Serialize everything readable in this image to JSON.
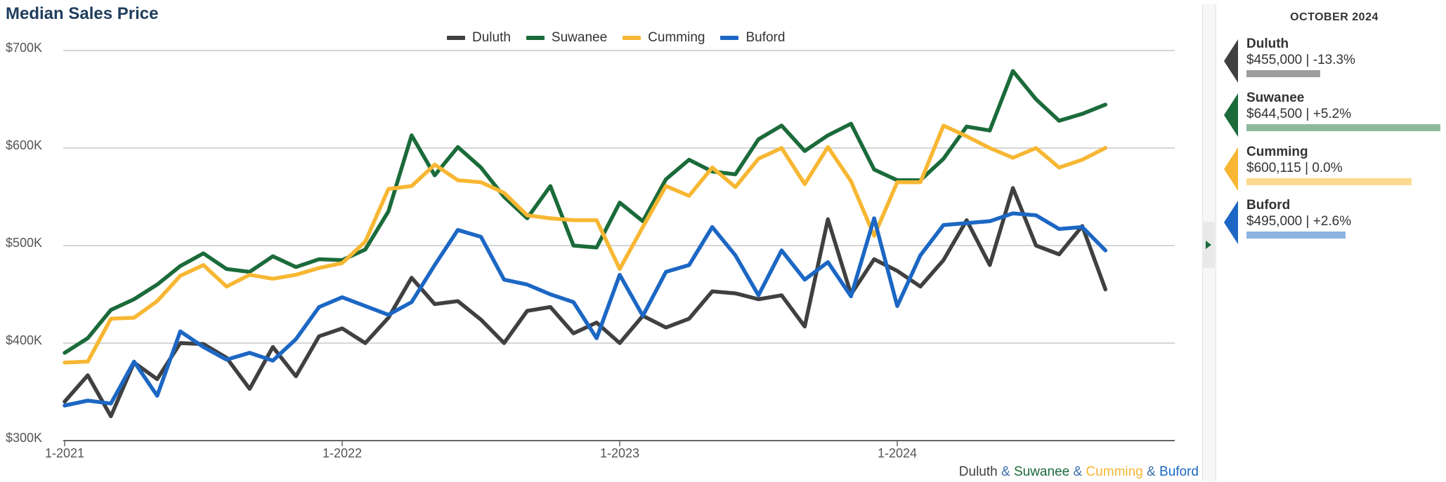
{
  "title": "Median Sales Price",
  "panel": {
    "heading": "OCTOBER 2024",
    "items": [
      {
        "name": "Duluth",
        "value_text": "$455,000 | -13.3%",
        "color": "#404040",
        "bar_color": "#9e9e9e",
        "bar_fraction": 0.38
      },
      {
        "name": "Suwanee",
        "value_text": "$644,500 | +5.2%",
        "color": "#1b6b3a",
        "bar_color": "#8dba9c",
        "bar_fraction": 1.0
      },
      {
        "name": "Cumming",
        "value_text": "$600,115 | 0.0%",
        "color": "#f7b733",
        "bar_color": "#fbd98f",
        "bar_fraction": 0.85
      },
      {
        "name": "Buford",
        "value_text": "$495,000 | +2.6%",
        "color": "#1c67c4",
        "bar_color": "#8cb3e1",
        "bar_fraction": 0.51
      }
    ]
  },
  "footer": {
    "duluth": "Duluth",
    "amp": "&",
    "suwanee": "Suwanee",
    "cumming": "Cumming",
    "buford": "Buford"
  },
  "chart_data": {
    "type": "line",
    "title": "Median Sales Price",
    "xlabel": "",
    "ylabel": "",
    "x_start": "1-2021",
    "x_ticks": [
      "1-2021",
      "1-2022",
      "1-2023",
      "1-2024"
    ],
    "y_ticks": [
      "$300K",
      "$400K",
      "$500K",
      "$600K",
      "$700K"
    ],
    "ylim": [
      300000,
      700000
    ],
    "grid": true,
    "legend": "top-center",
    "series": [
      {
        "name": "Duluth",
        "color": "#404040",
        "values": [
          340000,
          367000,
          325000,
          380000,
          363000,
          400000,
          399000,
          385000,
          353000,
          396000,
          366000,
          407000,
          415000,
          400000,
          426000,
          467000,
          440000,
          443000,
          424000,
          400000,
          433000,
          437000,
          410000,
          421000,
          400000,
          428000,
          416000,
          425000,
          453000,
          451000,
          445000,
          449000,
          417000,
          527000,
          450000,
          486000,
          474000,
          458000,
          485000,
          526000,
          480000,
          559000,
          500000,
          491000,
          520000,
          455000
        ]
      },
      {
        "name": "Suwanee",
        "color": "#1b6b3a",
        "values": [
          390000,
          405000,
          434000,
          445000,
          460000,
          479000,
          492000,
          476000,
          473000,
          489000,
          478000,
          486000,
          485000,
          496000,
          535000,
          613000,
          572000,
          601000,
          580000,
          550000,
          528000,
          561000,
          500000,
          498000,
          544000,
          525000,
          568000,
          588000,
          576000,
          573000,
          609000,
          623000,
          597000,
          613000,
          625000,
          578000,
          567000,
          567000,
          589000,
          622000,
          618000,
          679000,
          650000,
          628000,
          635000,
          644500
        ]
      },
      {
        "name": "Cumming",
        "color": "#f7b733",
        "values": [
          380000,
          381000,
          425000,
          426000,
          443000,
          469000,
          480000,
          458000,
          470000,
          466000,
          470000,
          477000,
          482000,
          504000,
          558000,
          561000,
          583000,
          567000,
          565000,
          554000,
          531000,
          528000,
          526000,
          526000,
          476000,
          519000,
          561000,
          551000,
          580000,
          560000,
          589000,
          600000,
          563000,
          601000,
          566000,
          510000,
          565000,
          565000,
          623000,
          612000,
          600000,
          590000,
          600000,
          580000,
          588000,
          600115
        ]
      },
      {
        "name": "Buford",
        "color": "#1c67c4",
        "values": [
          336000,
          341000,
          338000,
          381000,
          346000,
          412000,
          396000,
          383000,
          390000,
          382000,
          404000,
          437000,
          447000,
          438000,
          429000,
          442000,
          480000,
          516000,
          509000,
          465000,
          460000,
          450000,
          442000,
          405000,
          470000,
          428000,
          473000,
          480000,
          519000,
          490000,
          449000,
          495000,
          465000,
          483000,
          448000,
          528000,
          438000,
          490000,
          521000,
          523000,
          525000,
          533000,
          531000,
          517000,
          519000,
          495000
        ]
      }
    ]
  }
}
